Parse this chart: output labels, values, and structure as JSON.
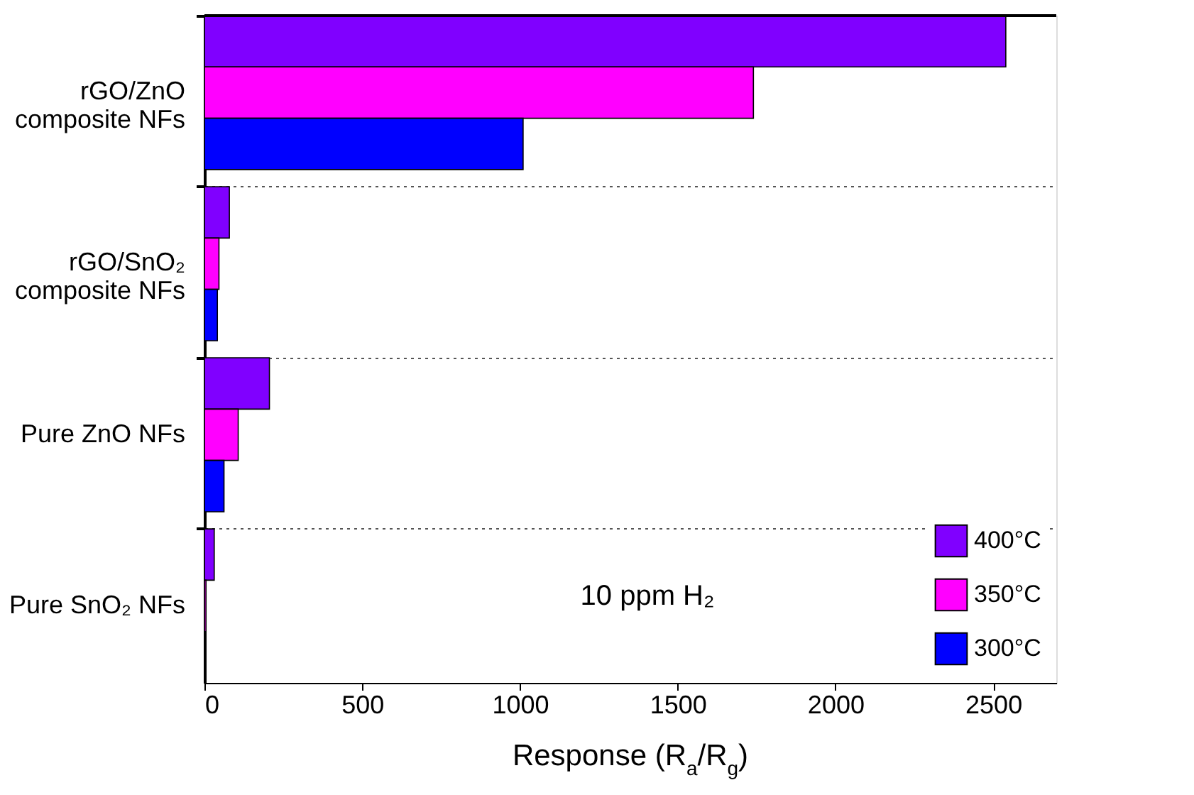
{
  "chart_data": {
    "type": "bar",
    "orientation": "horizontal",
    "xlabel": "Response (R$_{a}$/R$_{g}$)",
    "categories": [
      "rGO/ZnO\ncomposite NFs",
      "rGO/SnO₂\ncomposite NFs",
      "Pure ZnO NFs",
      "Pure SnO₂ NFs"
    ],
    "series": [
      {
        "name": "400°C",
        "color": "#8000ff",
        "values": [
          2540,
          79,
          206,
          31
        ]
      },
      {
        "name": "350°C",
        "color": "#ff00ff",
        "values": [
          1740,
          46,
          107,
          5
        ]
      },
      {
        "name": "300°C",
        "color": "#0000ff",
        "values": [
          1010,
          41,
          62,
          null
        ]
      }
    ],
    "xlim": [
      0,
      2700
    ],
    "xticks": [
      0,
      500,
      1000,
      1500,
      2000,
      2500
    ],
    "grid": "y",
    "legend": "bottom right",
    "annotations": [
      "10 ppm H₂"
    ]
  }
}
